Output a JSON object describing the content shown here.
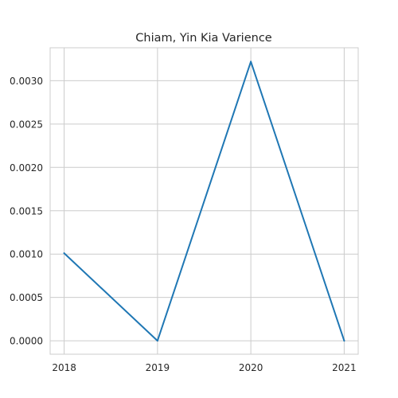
{
  "chart_data": {
    "type": "line",
    "title": "Chiam, Yin Kia Varience",
    "xlabel": "",
    "ylabel": "",
    "x": [
      "2018",
      "2019",
      "2020",
      "2021"
    ],
    "series": [
      {
        "values": [
          0.00101,
          0.0,
          0.00322,
          0.0
        ]
      }
    ],
    "xlim": [
      2017.85,
      2021.15
    ],
    "ylim": [
      -0.000155,
      0.00338
    ],
    "yticks": [
      0.0,
      0.0005,
      0.001,
      0.0015,
      0.002,
      0.0025,
      0.003
    ],
    "ytick_labels": [
      "0.0000",
      "0.0005",
      "0.0010",
      "0.0015",
      "0.0020",
      "0.0025",
      "0.0030"
    ],
    "grid": true,
    "legend": "none",
    "colors": {
      "line": "#1f77b4",
      "grid": "#cccccc",
      "text": "#262626"
    }
  }
}
